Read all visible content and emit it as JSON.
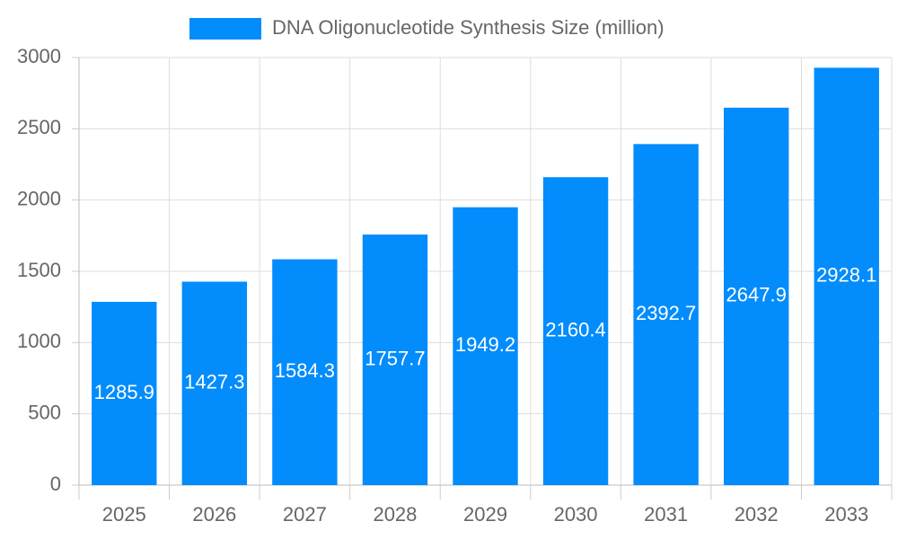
{
  "chart_data": {
    "type": "bar",
    "categories": [
      "2025",
      "2026",
      "2027",
      "2028",
      "2029",
      "2030",
      "2031",
      "2032",
      "2033"
    ],
    "series": [
      {
        "name": "DNA Oligonucleotide Synthesis Size (million)",
        "color": "#038cfc",
        "values": [
          1285.9,
          1427.3,
          1584.3,
          1757.7,
          1949.2,
          2160.4,
          2392.7,
          2647.9,
          2928.1
        ]
      }
    ],
    "ylim": [
      0,
      3000
    ],
    "yticks": [
      0,
      500,
      1000,
      1500,
      2000,
      2500,
      3000
    ],
    "grid": true,
    "legend": "top",
    "data_labels": true
  }
}
